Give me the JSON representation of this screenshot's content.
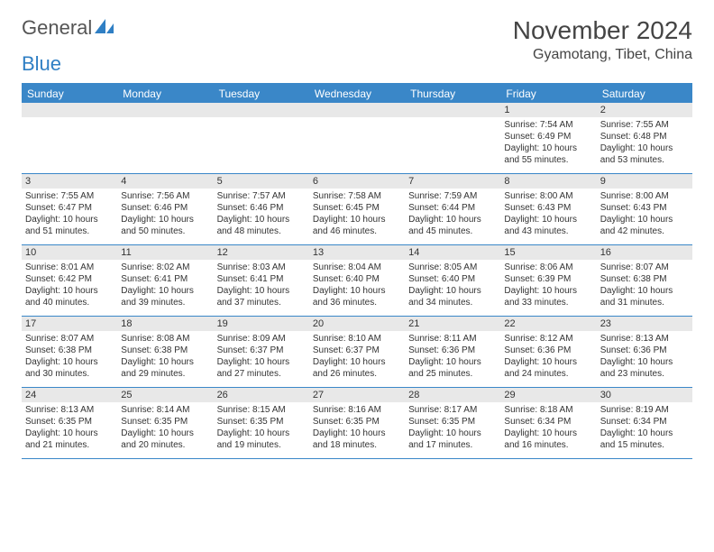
{
  "brand": {
    "part1": "General",
    "part2": "Blue"
  },
  "title": "November 2024",
  "location": "Gyamotang, Tibet, China",
  "colors": {
    "header_bg": "#3a87c8",
    "header_text": "#ffffff",
    "daynum_bg": "#e8e8e8",
    "border": "#3a87c8",
    "text": "#333333",
    "brand_gray": "#555555",
    "brand_blue": "#2f7fc4"
  },
  "weekdays": [
    "Sunday",
    "Monday",
    "Tuesday",
    "Wednesday",
    "Thursday",
    "Friday",
    "Saturday"
  ],
  "weeks": [
    [
      {
        "n": "",
        "sr": "",
        "ss": "",
        "dl": ""
      },
      {
        "n": "",
        "sr": "",
        "ss": "",
        "dl": ""
      },
      {
        "n": "",
        "sr": "",
        "ss": "",
        "dl": ""
      },
      {
        "n": "",
        "sr": "",
        "ss": "",
        "dl": ""
      },
      {
        "n": "",
        "sr": "",
        "ss": "",
        "dl": ""
      },
      {
        "n": "1",
        "sr": "Sunrise: 7:54 AM",
        "ss": "Sunset: 6:49 PM",
        "dl": "Daylight: 10 hours and 55 minutes."
      },
      {
        "n": "2",
        "sr": "Sunrise: 7:55 AM",
        "ss": "Sunset: 6:48 PM",
        "dl": "Daylight: 10 hours and 53 minutes."
      }
    ],
    [
      {
        "n": "3",
        "sr": "Sunrise: 7:55 AM",
        "ss": "Sunset: 6:47 PM",
        "dl": "Daylight: 10 hours and 51 minutes."
      },
      {
        "n": "4",
        "sr": "Sunrise: 7:56 AM",
        "ss": "Sunset: 6:46 PM",
        "dl": "Daylight: 10 hours and 50 minutes."
      },
      {
        "n": "5",
        "sr": "Sunrise: 7:57 AM",
        "ss": "Sunset: 6:46 PM",
        "dl": "Daylight: 10 hours and 48 minutes."
      },
      {
        "n": "6",
        "sr": "Sunrise: 7:58 AM",
        "ss": "Sunset: 6:45 PM",
        "dl": "Daylight: 10 hours and 46 minutes."
      },
      {
        "n": "7",
        "sr": "Sunrise: 7:59 AM",
        "ss": "Sunset: 6:44 PM",
        "dl": "Daylight: 10 hours and 45 minutes."
      },
      {
        "n": "8",
        "sr": "Sunrise: 8:00 AM",
        "ss": "Sunset: 6:43 PM",
        "dl": "Daylight: 10 hours and 43 minutes."
      },
      {
        "n": "9",
        "sr": "Sunrise: 8:00 AM",
        "ss": "Sunset: 6:43 PM",
        "dl": "Daylight: 10 hours and 42 minutes."
      }
    ],
    [
      {
        "n": "10",
        "sr": "Sunrise: 8:01 AM",
        "ss": "Sunset: 6:42 PM",
        "dl": "Daylight: 10 hours and 40 minutes."
      },
      {
        "n": "11",
        "sr": "Sunrise: 8:02 AM",
        "ss": "Sunset: 6:41 PM",
        "dl": "Daylight: 10 hours and 39 minutes."
      },
      {
        "n": "12",
        "sr": "Sunrise: 8:03 AM",
        "ss": "Sunset: 6:41 PM",
        "dl": "Daylight: 10 hours and 37 minutes."
      },
      {
        "n": "13",
        "sr": "Sunrise: 8:04 AM",
        "ss": "Sunset: 6:40 PM",
        "dl": "Daylight: 10 hours and 36 minutes."
      },
      {
        "n": "14",
        "sr": "Sunrise: 8:05 AM",
        "ss": "Sunset: 6:40 PM",
        "dl": "Daylight: 10 hours and 34 minutes."
      },
      {
        "n": "15",
        "sr": "Sunrise: 8:06 AM",
        "ss": "Sunset: 6:39 PM",
        "dl": "Daylight: 10 hours and 33 minutes."
      },
      {
        "n": "16",
        "sr": "Sunrise: 8:07 AM",
        "ss": "Sunset: 6:38 PM",
        "dl": "Daylight: 10 hours and 31 minutes."
      }
    ],
    [
      {
        "n": "17",
        "sr": "Sunrise: 8:07 AM",
        "ss": "Sunset: 6:38 PM",
        "dl": "Daylight: 10 hours and 30 minutes."
      },
      {
        "n": "18",
        "sr": "Sunrise: 8:08 AM",
        "ss": "Sunset: 6:38 PM",
        "dl": "Daylight: 10 hours and 29 minutes."
      },
      {
        "n": "19",
        "sr": "Sunrise: 8:09 AM",
        "ss": "Sunset: 6:37 PM",
        "dl": "Daylight: 10 hours and 27 minutes."
      },
      {
        "n": "20",
        "sr": "Sunrise: 8:10 AM",
        "ss": "Sunset: 6:37 PM",
        "dl": "Daylight: 10 hours and 26 minutes."
      },
      {
        "n": "21",
        "sr": "Sunrise: 8:11 AM",
        "ss": "Sunset: 6:36 PM",
        "dl": "Daylight: 10 hours and 25 minutes."
      },
      {
        "n": "22",
        "sr": "Sunrise: 8:12 AM",
        "ss": "Sunset: 6:36 PM",
        "dl": "Daylight: 10 hours and 24 minutes."
      },
      {
        "n": "23",
        "sr": "Sunrise: 8:13 AM",
        "ss": "Sunset: 6:36 PM",
        "dl": "Daylight: 10 hours and 23 minutes."
      }
    ],
    [
      {
        "n": "24",
        "sr": "Sunrise: 8:13 AM",
        "ss": "Sunset: 6:35 PM",
        "dl": "Daylight: 10 hours and 21 minutes."
      },
      {
        "n": "25",
        "sr": "Sunrise: 8:14 AM",
        "ss": "Sunset: 6:35 PM",
        "dl": "Daylight: 10 hours and 20 minutes."
      },
      {
        "n": "26",
        "sr": "Sunrise: 8:15 AM",
        "ss": "Sunset: 6:35 PM",
        "dl": "Daylight: 10 hours and 19 minutes."
      },
      {
        "n": "27",
        "sr": "Sunrise: 8:16 AM",
        "ss": "Sunset: 6:35 PM",
        "dl": "Daylight: 10 hours and 18 minutes."
      },
      {
        "n": "28",
        "sr": "Sunrise: 8:17 AM",
        "ss": "Sunset: 6:35 PM",
        "dl": "Daylight: 10 hours and 17 minutes."
      },
      {
        "n": "29",
        "sr": "Sunrise: 8:18 AM",
        "ss": "Sunset: 6:34 PM",
        "dl": "Daylight: 10 hours and 16 minutes."
      },
      {
        "n": "30",
        "sr": "Sunrise: 8:19 AM",
        "ss": "Sunset: 6:34 PM",
        "dl": "Daylight: 10 hours and 15 minutes."
      }
    ]
  ]
}
